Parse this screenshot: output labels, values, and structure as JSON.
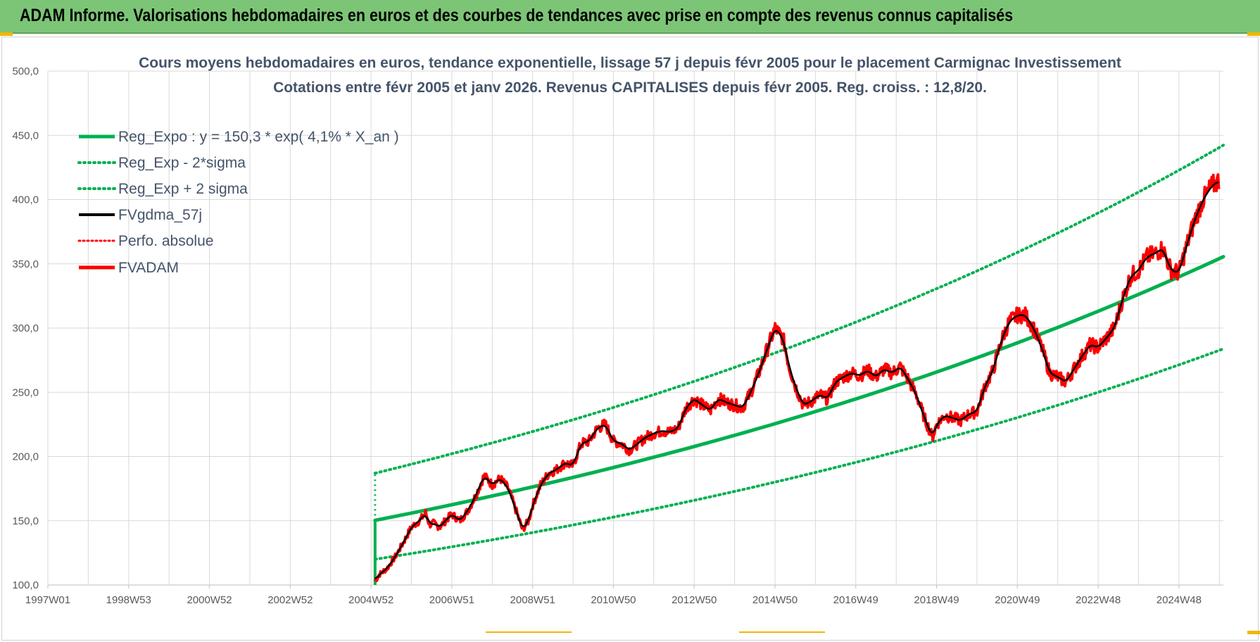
{
  "header": {
    "title": "ADAM Informe. Valorisations hebdomadaires en euros et des courbes de tendances avec prise en compte des revenus connus capitalisés"
  },
  "colors": {
    "header_bg": "#7cc576",
    "green": "#00b050",
    "black": "#000000",
    "red": "#ff0000",
    "title_text": "#44546a",
    "corner_marks": "#f2b705"
  },
  "chart_data": {
    "type": "line",
    "title_lines": [
      "Cours moyens hebdomadaires en euros, tendance exponentielle, lissage 57 j depuis févr 2005 pour le placement Carmignac Investissement",
      "Cotations entre févr 2005 et janv 2026. Revenus CAPITALISES depuis févr 2005. Reg. croiss. : 12,8/20."
    ],
    "xlabel": "",
    "ylabel": "",
    "ylim": [
      100,
      500
    ],
    "y_ticks": [
      100,
      150,
      200,
      250,
      300,
      350,
      400,
      450,
      500
    ],
    "y_tick_labels": [
      "100,0",
      "150,0",
      "200,0",
      "250,0",
      "300,0",
      "350,0",
      "400,0",
      "450,0",
      "500,0"
    ],
    "xlim": [
      1997.0,
      2026.1
    ],
    "x_tick_labels": [
      "1997W01",
      "1998W53",
      "2000W52",
      "2002W52",
      "2004W52",
      "2006W51",
      "2008W51",
      "2010W50",
      "2012W50",
      "2014W50",
      "2016W49",
      "2018W49",
      "2020W49",
      "2022W48",
      "2024W48"
    ],
    "x_tick_values": [
      1997.0,
      1999.0,
      2001.0,
      2003.0,
      2005.0,
      2007.0,
      2009.0,
      2011.0,
      2013.0,
      2015.0,
      2017.0,
      2019.0,
      2021.0,
      2023.0,
      2025.0
    ],
    "grid": true,
    "legend_position": "top-left",
    "legend": [
      {
        "label": "Reg_Expo : y = 150,3 * exp( 4,1% *  X_an )",
        "color": "#00b050",
        "style": "solid-thick"
      },
      {
        "label": "Reg_Exp - 2*sigma",
        "color": "#00b050",
        "style": "dotted"
      },
      {
        "label": "Reg_Exp + 2 sigma",
        "color": "#00b050",
        "style": "dotted"
      },
      {
        "label": "FVgdma_57j",
        "color": "#000000",
        "style": "solid"
      },
      {
        "label": "Perfo. absolue",
        "color": "#ff0000",
        "style": "dotted"
      },
      {
        "label": "FVADAM",
        "color": "#ff0000",
        "style": "solid-thick"
      }
    ],
    "regression": {
      "start": 2005.1,
      "end": 2026.1,
      "a": 150.3,
      "rate": 0.041
    },
    "series": [
      {
        "name": "Reg_Expo : y = 150,3 * exp( 4,1% *  X_an )",
        "x": [
          2005.1,
          2026.1
        ],
        "values": [
          150.3,
          354.5
        ]
      },
      {
        "name": "Reg_Exp - 2*sigma",
        "x": [
          2005.1,
          2026.1
        ],
        "values": [
          120.0,
          283.0
        ]
      },
      {
        "name": "Reg_Exp + 2 sigma",
        "x": [
          2005.1,
          2026.1
        ],
        "values": [
          187.0,
          446.0
        ]
      },
      {
        "name": "FVADAM",
        "x": [
          2005.1,
          2005.2,
          2005.4,
          2005.6,
          2005.8,
          2006.0,
          2006.2,
          2006.35,
          2006.45,
          2006.55,
          2006.7,
          2006.9,
          2007.0,
          2007.2,
          2007.4,
          2007.6,
          2007.8,
          2008.0,
          2008.2,
          2008.4,
          2008.6,
          2008.75,
          2008.9,
          2009.0,
          2009.2,
          2009.4,
          2009.6,
          2009.8,
          2010.0,
          2010.2,
          2010.4,
          2010.6,
          2010.8,
          2011.0,
          2011.2,
          2011.4,
          2011.6,
          2011.8,
          2012.0,
          2012.2,
          2012.4,
          2012.6,
          2012.8,
          2013.0,
          2013.2,
          2013.4,
          2013.6,
          2013.8,
          2014.0,
          2014.2,
          2014.4,
          2014.6,
          2014.8,
          2015.0,
          2015.2,
          2015.35,
          2015.5,
          2015.7,
          2015.9,
          2016.1,
          2016.3,
          2016.5,
          2016.7,
          2016.9,
          2017.1,
          2017.3,
          2017.5,
          2017.7,
          2017.9,
          2018.1,
          2018.3,
          2018.5,
          2018.7,
          2018.9,
          2019.0,
          2019.2,
          2019.4,
          2019.6,
          2019.8,
          2020.0,
          2020.2,
          2020.4,
          2020.6,
          2020.8,
          2021.0,
          2021.2,
          2021.4,
          2021.6,
          2021.8,
          2022.0,
          2022.2,
          2022.4,
          2022.6,
          2022.8,
          2023.0,
          2023.2,
          2023.4,
          2023.6,
          2023.8,
          2024.0,
          2024.2,
          2024.4,
          2024.6,
          2024.8,
          2025.0,
          2025.2,
          2025.4,
          2025.6,
          2025.8,
          2026.0
        ],
        "values": [
          103,
          108,
          113,
          122,
          133,
          145,
          150,
          156,
          147,
          148,
          145,
          152,
          155,
          150,
          158,
          170,
          185,
          178,
          183,
          175,
          157,
          143,
          150,
          162,
          178,
          187,
          190,
          195,
          193,
          210,
          212,
          222,
          225,
          212,
          210,
          205,
          210,
          215,
          218,
          220,
          219,
          222,
          238,
          245,
          240,
          236,
          245,
          242,
          240,
          238,
          250,
          265,
          283,
          300,
          292,
          270,
          255,
          240,
          243,
          248,
          245,
          258,
          262,
          265,
          263,
          267,
          262,
          268,
          265,
          270,
          260,
          248,
          230,
          215,
          225,
          232,
          230,
          228,
          233,
          235,
          255,
          267,
          290,
          305,
          310,
          310,
          300,
          285,
          265,
          262,
          258,
          268,
          278,
          287,
          285,
          292,
          300,
          322,
          340,
          345,
          355,
          358,
          362,
          345,
          343,
          365,
          385,
          400,
          410,
          415
        ]
      }
    ]
  }
}
